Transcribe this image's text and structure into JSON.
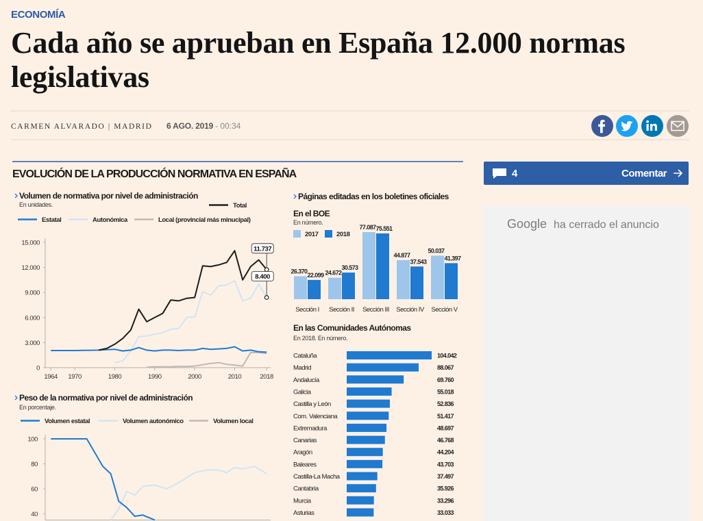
{
  "section": "ECONOMÍA",
  "headline": "Cada año se aprueban en España 12.000 normas legislativas",
  "byline": {
    "author": "CARMEN ALVARADO | MADRID",
    "date": "6 AGO. 2019",
    "time": "- 00:34"
  },
  "comments": {
    "count": "4",
    "label": "Comentar"
  },
  "ad_notice": {
    "brand": "Google",
    "text": "ha cerrado el anuncio"
  },
  "infographic": {
    "title": "EVOLUCIÓN DE LA PRODUCCIÓN NORMATIVA EN ESPAÑA",
    "charts": [
      {
        "type": "line",
        "title": "Volumen de normativa por nivel de administración",
        "subtitle": "En unidades.",
        "x": [
          1964,
          1970,
          1976,
          1978,
          1980,
          1982,
          1984,
          1986,
          1988,
          1990,
          1992,
          1994,
          1996,
          1998,
          2000,
          2002,
          2004,
          2006,
          2008,
          2010,
          2012,
          2014,
          2016,
          2018
        ],
        "xlim": [
          1962.6,
          2019
        ],
        "xticks": [
          1964,
          1970,
          1980,
          1990,
          2000,
          2010,
          2018
        ],
        "ylim": [
          0,
          15000
        ],
        "yticks": [
          0,
          {
            "value": 3000,
            "label": "3.000"
          },
          {
            "value": 6000,
            "label": "6.000"
          },
          {
            "value": 9000,
            "label": "9.000"
          },
          {
            "value": 12000,
            "label": "12.000"
          },
          {
            "value": 15000,
            "label": "15.000"
          }
        ],
        "series": [
          {
            "name": "Total",
            "color": "#1d1d1b",
            "values": [
              null,
              null,
              2100,
              2300,
              2800,
              3500,
              4500,
              7000,
              5500,
              6000,
              6500,
              8100,
              8000,
              8300,
              8400,
              12200,
              12100,
              12300,
              12600,
              14000,
              10500,
              12100,
              12900,
              11737
            ]
          },
          {
            "name": "Estatal",
            "color": "#1f7ad0",
            "values": [
              2050,
              2050,
              2100,
              2150,
              2200,
              2000,
              2100,
              2400,
              2100,
              2000,
              2100,
              2100,
              2050,
              2100,
              2100,
              2300,
              2200,
              2250,
              2300,
              2500,
              2000,
              2100,
              1900,
              1850
            ]
          },
          {
            "name": "Autonómica",
            "color": "#d2e4f3",
            "values": [
              null,
              null,
              null,
              null,
              600,
              800,
              2000,
              3700,
              3800,
              4000,
              4200,
              4600,
              4700,
              6000,
              6100,
              9100,
              8700,
              9800,
              9900,
              10400,
              8000,
              8300,
              10000,
              8400
            ]
          },
          {
            "name": "Local (provincial más minucipal)",
            "color": "#bdb8b3",
            "values": [
              null,
              null,
              null,
              null,
              null,
              null,
              null,
              null,
              50,
              100,
              100,
              100,
              150,
              150,
              200,
              350,
              500,
              600,
              400,
              300,
              200,
              1800,
              1800,
              1700
            ]
          }
        ],
        "annotations": [
          {
            "x": 2018,
            "value": 11737,
            "label": "11.737"
          },
          {
            "x": 2018,
            "value": 8400,
            "label": "8.400"
          }
        ]
      },
      {
        "type": "line",
        "title": "Peso de la normativa por nivel de administración",
        "subtitle": "En porcentaje.",
        "x": [
          1964,
          1973,
          1977,
          1979,
          1981,
          1983,
          1985,
          1987,
          1990,
          1993,
          1996,
          2000,
          2003,
          2006,
          2008,
          2010,
          2012,
          2015,
          2017,
          2018
        ],
        "xlim": [
          1962.6,
          2019
        ],
        "ylim": [
          35,
          100
        ],
        "yticks": [
          40,
          60,
          80,
          100
        ],
        "series": [
          {
            "name": "Volumen estatal",
            "color": "#1f7ad0",
            "values": [
              100,
              100,
              78,
              72,
              50,
              45,
              38,
              39,
              35,
              null,
              null,
              null,
              null,
              null,
              null,
              null,
              null,
              null,
              null,
              null
            ]
          },
          {
            "name": "Volumen autonómico",
            "color": "#d2e4f3",
            "values": [
              null,
              null,
              null,
              35,
              44,
              58,
              55,
              62,
              63,
              60,
              65,
              73,
              75,
              75,
              73,
              77,
              76,
              78,
              74,
              72
            ]
          },
          {
            "name": "Volumen local",
            "color": "#bdb8b3",
            "values": [
              null,
              null,
              null,
              null,
              null,
              null,
              null,
              null,
              null,
              null,
              null,
              null,
              null,
              null,
              null,
              null,
              null,
              null,
              null,
              null
            ]
          }
        ]
      },
      {
        "type": "bar",
        "title": "Páginas editadas en los boletines oficiales",
        "panel_title": "En el BOE",
        "subtitle": "En número.",
        "categories": [
          "Sección I",
          "Sección II",
          "Sección III",
          "Sección IV",
          "Sección V"
        ],
        "series": [
          {
            "name": "2017",
            "color": "#9dc6ea",
            "values": [
              26370,
              24672,
              77087,
              44877,
              50037
            ],
            "value_labels": [
              "26.370",
              "24.672",
              "77.087",
              "44.877",
              "50.037"
            ]
          },
          {
            "name": "2018",
            "color": "#1f7ad0",
            "values": [
              22099,
              30573,
              75551,
              37543,
              41397
            ],
            "value_labels": [
              "22.099",
              "30.573",
              "75.551",
              "37.543",
              "41.397"
            ]
          }
        ]
      },
      {
        "type": "hbar",
        "title": "En las Comunidades Autónomas",
        "subtitle": "En 2018. En número.",
        "color": "#1f7ad0",
        "categories": [
          "Cataluña",
          "Madrid",
          "Andalucía",
          "Galicia",
          "Castilla y León",
          "Com. Valenciana",
          "Extremadura",
          "Canarias",
          "Aragón",
          "Baleares",
          "Castilla-La Macha",
          "Cantabria",
          "Murcia",
          "Asturias"
        ],
        "values": [
          104042,
          88067,
          69760,
          55018,
          52836,
          51417,
          48697,
          46768,
          44204,
          43703,
          37497,
          35926,
          33296,
          33033
        ],
        "value_labels": [
          "104.042",
          "88.067",
          "69.760",
          "55.018",
          "52.836",
          "51.417",
          "48.697",
          "46.768",
          "44.204",
          "43.703",
          "37.497",
          "35.926",
          "33.296",
          "33.033"
        ]
      }
    ]
  }
}
